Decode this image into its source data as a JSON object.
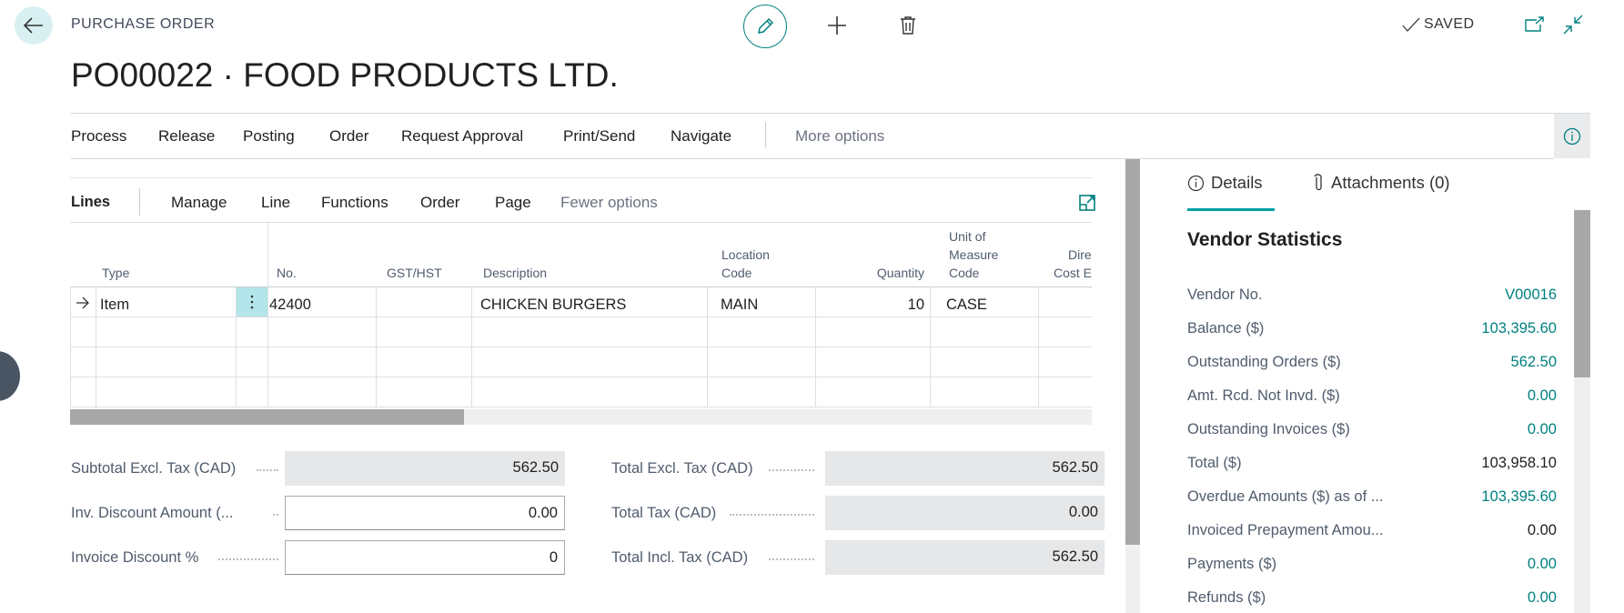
{
  "header": {
    "caption": "PURCHASE ORDER",
    "title": "PO00022 · FOOD PRODUCTS LTD.",
    "status": "SAVED"
  },
  "actions": [
    "Process",
    "Release",
    "Posting",
    "Order",
    "Request Approval",
    "Print/Send",
    "Navigate"
  ],
  "more_options": "More options",
  "lines": {
    "title": "Lines",
    "menu": [
      "Manage",
      "Line",
      "Functions",
      "Order",
      "Page"
    ],
    "fewer_options": "Fewer options",
    "columns": {
      "type": "Type",
      "no": "No.",
      "gst": "GST/HST",
      "description": "Description",
      "location": [
        "Location",
        "Code"
      ],
      "quantity": "Quantity",
      "uom": [
        "Unit of",
        "Measure",
        "Code"
      ],
      "direct": [
        "Direct",
        "Cost Excl."
      ]
    },
    "rows": [
      {
        "type": "Item",
        "no": "42400",
        "gst": "",
        "description": "CHICKEN BURGERS",
        "location": "MAIN",
        "quantity": "10",
        "uom": "CASE"
      }
    ]
  },
  "totals": {
    "subtotal": {
      "label": "Subtotal Excl. Tax (CAD)",
      "value": "562.50"
    },
    "inv_discount": {
      "label": "Inv. Discount Amount (...",
      "value": "0.00"
    },
    "inv_discount_pct": {
      "label": "Invoice Discount %",
      "value": "0"
    },
    "total_excl": {
      "label": "Total Excl. Tax (CAD)",
      "value": "562.50"
    },
    "total_tax": {
      "label": "Total Tax (CAD)",
      "value": "0.00"
    },
    "total_incl": {
      "label": "Total Incl. Tax (CAD)",
      "value": "562.50"
    }
  },
  "factbox": {
    "tabs": {
      "details": "Details",
      "attachments": "Attachments (0)"
    },
    "section": "Vendor Statistics",
    "rows": [
      {
        "label": "Vendor No.",
        "value": "V00016",
        "link": true
      },
      {
        "label": "Balance ($)",
        "value": "103,395.60",
        "link": true
      },
      {
        "label": "Outstanding Orders ($)",
        "value": "562.50",
        "link": true
      },
      {
        "label": "Amt. Rcd. Not Invd. ($)",
        "value": "0.00",
        "link": true
      },
      {
        "label": "Outstanding Invoices ($)",
        "value": "0.00",
        "link": true
      },
      {
        "label": "Total ($)",
        "value": "103,958.10",
        "link": false
      },
      {
        "label": "Overdue Amounts ($) as of ...",
        "value": "103,395.60",
        "link": true
      },
      {
        "label": "Invoiced Prepayment Amou...",
        "value": "0.00",
        "link": false
      },
      {
        "label": "Payments ($)",
        "value": "0.00",
        "link": true
      },
      {
        "label": "Refunds ($)",
        "value": "0.00",
        "link": true
      }
    ]
  },
  "colors": {
    "accent": "#00807f",
    "selected_cell": "#b3e6ea"
  }
}
